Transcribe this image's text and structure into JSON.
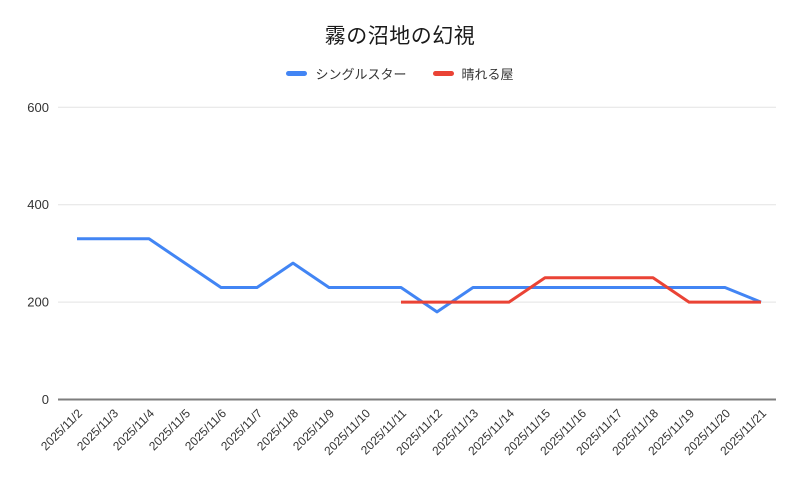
{
  "chart_data": {
    "type": "line",
    "title": "霧の沼地の幻視",
    "categories": [
      "2025/11/2",
      "2025/11/3",
      "2025/11/4",
      "2025/11/5",
      "2025/11/6",
      "2025/11/7",
      "2025/11/8",
      "2025/11/9",
      "2025/11/10",
      "2025/11/11",
      "2025/11/12",
      "2025/11/13",
      "2025/11/14",
      "2025/11/15",
      "2025/11/16",
      "2025/11/17",
      "2025/11/18",
      "2025/11/19",
      "2025/11/20",
      "2025/11/21"
    ],
    "series": [
      {
        "name": "シングルスター",
        "color": "#4285F4",
        "values": [
          330,
          330,
          330,
          280,
          230,
          230,
          280,
          230,
          230,
          230,
          180,
          230,
          230,
          230,
          230,
          230,
          230,
          230,
          230,
          200
        ]
      },
      {
        "name": "晴れる屋",
        "color": "#EA4335",
        "values": [
          null,
          null,
          null,
          null,
          null,
          null,
          null,
          null,
          null,
          200,
          200,
          200,
          200,
          250,
          250,
          250,
          250,
          200,
          200,
          200
        ]
      }
    ],
    "y_ticks": [
      0,
      200,
      400,
      600
    ],
    "ylim": [
      0,
      600
    ],
    "grid": true,
    "legend_position": "top",
    "colors": {
      "axis_line": "#7d7d7d",
      "gridline": "#e3e3e3",
      "tick_text": "#333333",
      "title_text": "#1a1a1a",
      "background": "#ffffff"
    }
  }
}
